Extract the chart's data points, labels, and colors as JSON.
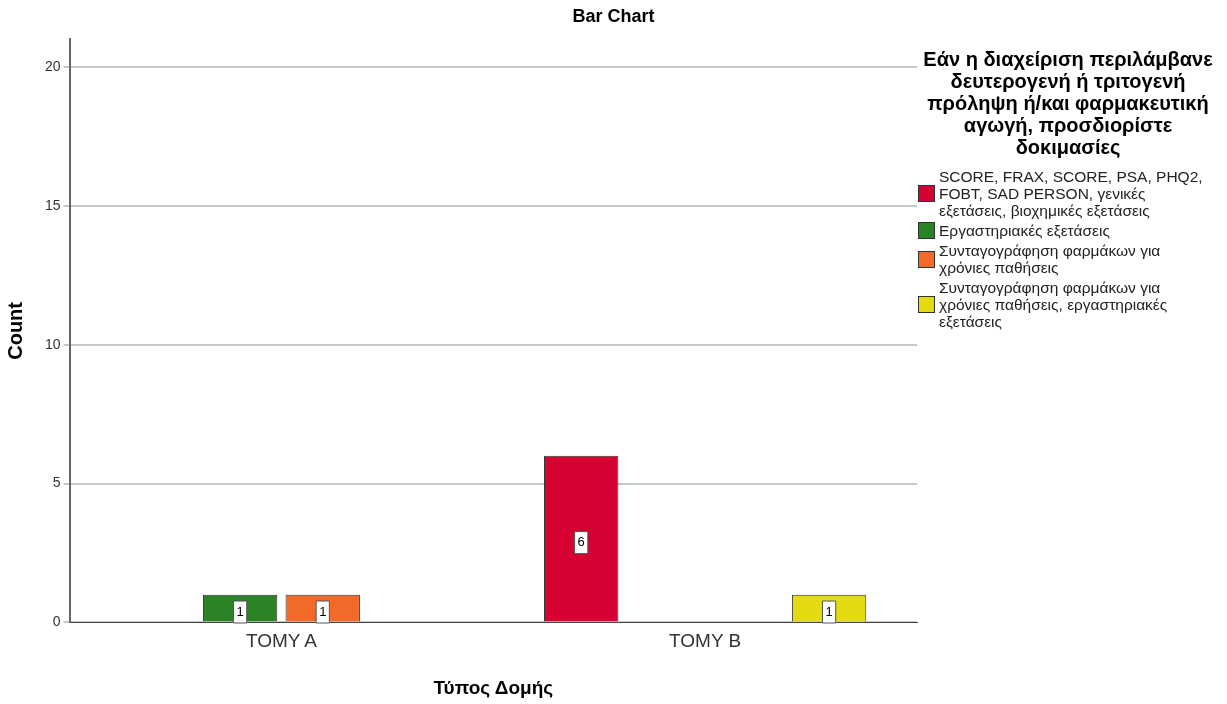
{
  "chart_data": {
    "type": "bar",
    "title": "Bar Chart",
    "xlabel": "Τύπος Δομής",
    "ylabel": "Count",
    "legend_title": "Εάν η διαχείριση περιλάμβανε δευτερογενή ή τριτογενή πρόληψη ή/και φαρμακευτική αγωγή, προσδιορίστε δοκιμασίες",
    "categories": [
      "TOMY A",
      "TOMY B"
    ],
    "series": [
      {
        "name": "SCORE, FRAX, SCORE, PSA, PHQ2, FOBT, SAD PERSON, γενικές εξετάσεις, βιοχημικές εξετάσεις",
        "color": "#d60032",
        "values": [
          null,
          6
        ]
      },
      {
        "name": "Εργαστηριακές εξετάσεις",
        "color": "#2a8426",
        "values": [
          1,
          null
        ]
      },
      {
        "name": "Συνταγογράφηση φαρμάκων για χρόνιες παθήσεις",
        "color": "#f26a2a",
        "values": [
          1,
          null
        ]
      },
      {
        "name": "Συνταγογράφηση φαρμάκων για χρόνιες παθήσεις, εργαστηριακές εξετάσεις",
        "color": "#e3da12",
        "values": [
          null,
          1
        ]
      }
    ],
    "ylim": [
      0,
      21
    ],
    "yticks": [
      0,
      5,
      10,
      15,
      20
    ],
    "grid": "y",
    "legend": "right",
    "data_labels": true
  }
}
